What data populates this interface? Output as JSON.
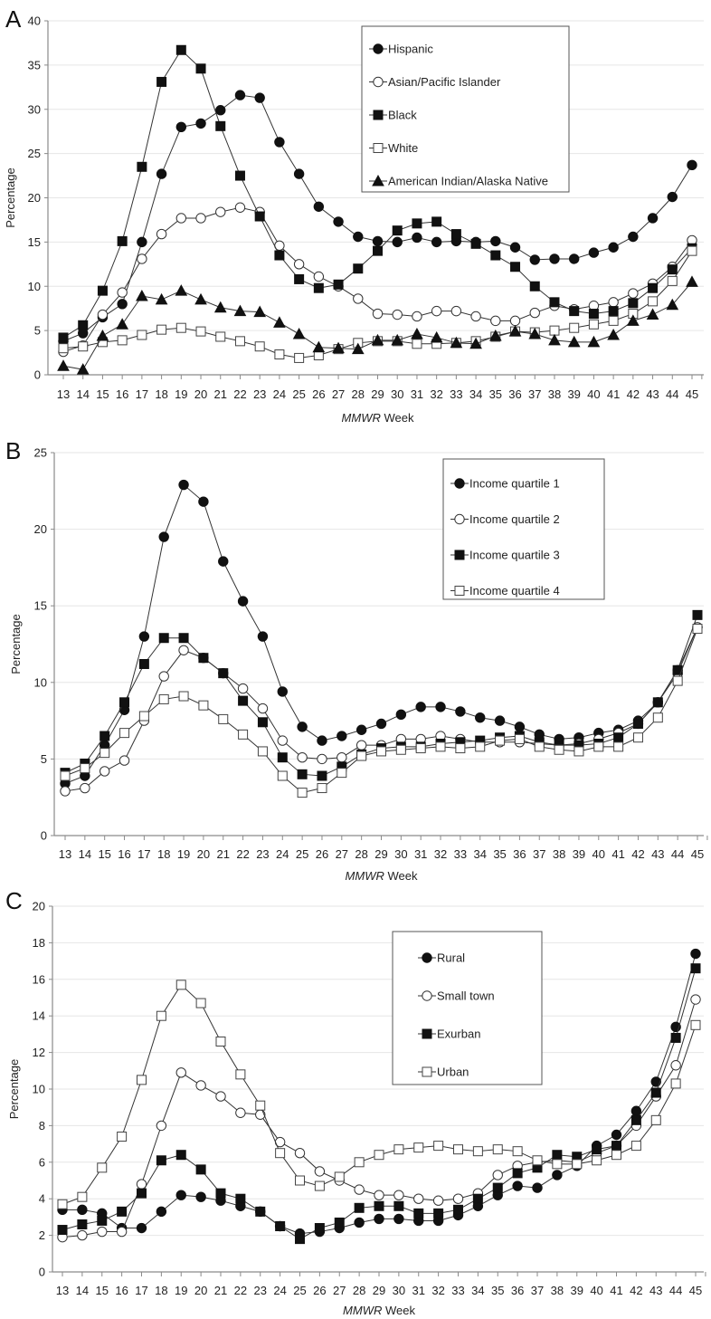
{
  "chart_data": [
    {
      "panel": "A",
      "type": "line",
      "xlabel_italic": "MMWR",
      "xlabel_rest": " Week",
      "ylabel": "Percentage",
      "x": [
        13,
        14,
        15,
        16,
        17,
        18,
        19,
        20,
        21,
        22,
        23,
        24,
        25,
        26,
        27,
        28,
        29,
        30,
        31,
        32,
        33,
        34,
        35,
        36,
        37,
        38,
        39,
        40,
        41,
        42,
        43,
        44,
        45
      ],
      "ylim": [
        0,
        40
      ],
      "yticks": [
        0,
        5,
        10,
        15,
        20,
        25,
        30,
        35,
        40
      ],
      "grid": true,
      "legend_position": "top-center",
      "series": [
        {
          "name": "Hispanic",
          "marker": "filled-circle",
          "values": [
            3.8,
            4.7,
            6.5,
            8.0,
            15.0,
            22.7,
            28.0,
            28.4,
            29.9,
            31.6,
            31.3,
            26.3,
            22.7,
            19.0,
            17.3,
            15.6,
            15.1,
            15.0,
            15.5,
            15.0,
            15.1,
            15.0,
            15.1,
            14.4,
            13.0,
            13.1,
            13.1,
            13.8,
            14.4,
            15.6,
            17.7,
            20.1,
            23.7
          ]
        },
        {
          "name": "Asian/Pacific Islander",
          "marker": "open-circle",
          "values": [
            2.6,
            3.3,
            6.8,
            9.3,
            13.1,
            15.9,
            17.7,
            17.7,
            18.4,
            18.9,
            18.4,
            14.6,
            12.5,
            11.1,
            10.0,
            8.6,
            6.9,
            6.8,
            6.6,
            7.2,
            7.2,
            6.6,
            6.1,
            6.1,
            7.0,
            7.8,
            7.4,
            7.8,
            8.2,
            9.2,
            10.3,
            12.2,
            15.2
          ]
        },
        {
          "name": "Black",
          "marker": "filled-square",
          "values": [
            4.2,
            5.6,
            9.5,
            15.1,
            23.5,
            33.1,
            36.7,
            34.6,
            28.1,
            22.5,
            17.9,
            13.5,
            10.8,
            9.8,
            10.2,
            12.0,
            14.0,
            16.3,
            17.1,
            17.3,
            15.9,
            14.8,
            13.5,
            12.2,
            10.0,
            8.2,
            7.2,
            6.9,
            7.2,
            8.1,
            9.8,
            11.9,
            14.3
          ]
        },
        {
          "name": "White",
          "marker": "open-square",
          "values": [
            3.0,
            3.2,
            3.7,
            3.9,
            4.5,
            5.1,
            5.3,
            4.9,
            4.3,
            3.8,
            3.2,
            2.3,
            1.9,
            2.2,
            2.9,
            3.6,
            3.8,
            3.8,
            3.5,
            3.5,
            3.6,
            3.8,
            4.3,
            4.9,
            4.8,
            5.0,
            5.3,
            5.7,
            6.1,
            6.9,
            8.3,
            10.6,
            14.0
          ]
        },
        {
          "name": "American Indian/Alaska Native",
          "marker": "filled-triangle",
          "values": [
            1.0,
            0.6,
            4.4,
            5.7,
            8.9,
            8.5,
            9.5,
            8.5,
            7.6,
            7.2,
            7.1,
            5.9,
            4.6,
            3.1,
            3.0,
            2.9,
            3.9,
            3.9,
            4.6,
            4.2,
            3.6,
            3.5,
            4.4,
            4.9,
            4.6,
            3.9,
            3.7,
            3.7,
            4.5,
            6.1,
            6.8,
            7.9,
            10.5
          ]
        }
      ]
    },
    {
      "panel": "B",
      "type": "line",
      "xlabel_italic": "MMWR",
      "xlabel_rest": " Week",
      "ylabel": "Percentage",
      "x": [
        13,
        14,
        15,
        16,
        17,
        18,
        19,
        20,
        21,
        22,
        23,
        24,
        25,
        26,
        27,
        28,
        29,
        30,
        31,
        32,
        33,
        34,
        35,
        36,
        37,
        38,
        39,
        40,
        41,
        42,
        43,
        44,
        45
      ],
      "ylim": [
        0,
        25
      ],
      "yticks": [
        0,
        5,
        10,
        15,
        20,
        25
      ],
      "grid": true,
      "legend_position": "top-right",
      "series": [
        {
          "name": "Income quartile 1",
          "marker": "filled-circle",
          "values": [
            3.4,
            3.9,
            5.9,
            8.2,
            13.0,
            19.5,
            22.9,
            21.8,
            17.9,
            15.3,
            13.0,
            9.4,
            7.1,
            6.2,
            6.5,
            6.9,
            7.3,
            7.9,
            8.4,
            8.4,
            8.1,
            7.7,
            7.5,
            7.1,
            6.6,
            6.3,
            6.4,
            6.7,
            6.9,
            7.5,
            8.7,
            10.8,
            13.6
          ]
        },
        {
          "name": "Income quartile 2",
          "marker": "open-circle",
          "values": [
            2.9,
            3.1,
            4.2,
            4.9,
            7.5,
            10.4,
            12.1,
            11.6,
            10.6,
            9.6,
            8.3,
            6.2,
            5.1,
            5.0,
            5.1,
            5.9,
            5.9,
            6.3,
            6.3,
            6.5,
            6.3,
            6.1,
            6.1,
            6.1,
            6.0,
            5.9,
            6.0,
            6.3,
            6.7,
            7.3,
            8.7,
            10.6,
            13.6
          ]
        },
        {
          "name": "Income quartile 3",
          "marker": "filled-square",
          "values": [
            4.1,
            4.7,
            6.5,
            8.7,
            11.2,
            12.9,
            12.9,
            11.6,
            10.6,
            8.8,
            7.4,
            5.1,
            4.0,
            3.9,
            4.5,
            5.3,
            5.7,
            5.8,
            5.8,
            6.0,
            6.1,
            6.2,
            6.4,
            6.5,
            6.1,
            5.9,
            5.9,
            6.0,
            6.4,
            7.3,
            8.7,
            10.8,
            14.4
          ]
        },
        {
          "name": "Income quartile 4",
          "marker": "open-square",
          "values": [
            3.9,
            4.4,
            5.4,
            6.7,
            7.8,
            8.9,
            9.1,
            8.5,
            7.6,
            6.6,
            5.5,
            3.9,
            2.8,
            3.1,
            4.1,
            5.2,
            5.5,
            5.6,
            5.7,
            5.8,
            5.7,
            5.8,
            6.2,
            6.3,
            5.8,
            5.6,
            5.5,
            5.8,
            5.8,
            6.4,
            7.7,
            10.1,
            13.5
          ]
        }
      ]
    },
    {
      "panel": "C",
      "type": "line",
      "xlabel_italic": "MMWR",
      "xlabel_rest": " Week",
      "ylabel": "Percentage",
      "x": [
        13,
        14,
        15,
        16,
        17,
        18,
        19,
        20,
        21,
        22,
        23,
        24,
        25,
        26,
        27,
        28,
        29,
        30,
        31,
        32,
        33,
        34,
        35,
        36,
        37,
        38,
        39,
        40,
        41,
        42,
        43,
        44,
        45
      ],
      "ylim": [
        0,
        20
      ],
      "yticks": [
        0,
        2,
        4,
        6,
        8,
        10,
        12,
        14,
        16,
        18,
        20
      ],
      "grid": true,
      "legend_position": "top-center",
      "series": [
        {
          "name": "Rural",
          "marker": "filled-circle",
          "values": [
            3.4,
            3.4,
            3.2,
            2.4,
            2.4,
            3.3,
            4.2,
            4.1,
            3.9,
            3.6,
            3.3,
            2.5,
            2.1,
            2.2,
            2.4,
            2.7,
            2.9,
            2.9,
            2.8,
            2.8,
            3.1,
            3.6,
            4.2,
            4.7,
            4.6,
            5.3,
            5.8,
            6.9,
            7.5,
            8.8,
            10.4,
            13.4,
            17.4
          ]
        },
        {
          "name": "Small town",
          "marker": "open-circle",
          "values": [
            1.9,
            2.0,
            2.2,
            2.2,
            4.8,
            8.0,
            10.9,
            10.2,
            9.6,
            8.7,
            8.6,
            7.1,
            6.5,
            5.5,
            5.0,
            4.5,
            4.2,
            4.2,
            4.0,
            3.9,
            4.0,
            4.3,
            5.3,
            5.8,
            6.0,
            6.1,
            6.0,
            6.5,
            6.9,
            8.0,
            9.6,
            11.3,
            14.9
          ]
        },
        {
          "name": "Exurban",
          "marker": "filled-square",
          "values": [
            2.3,
            2.6,
            2.8,
            3.3,
            4.3,
            6.1,
            6.4,
            5.6,
            4.3,
            4.0,
            3.3,
            2.5,
            1.8,
            2.4,
            2.7,
            3.5,
            3.6,
            3.6,
            3.2,
            3.2,
            3.4,
            4.0,
            4.6,
            5.4,
            5.7,
            6.4,
            6.3,
            6.7,
            6.9,
            8.3,
            9.8,
            12.8,
            16.6
          ]
        },
        {
          "name": "Urban",
          "marker": "open-square",
          "values": [
            3.7,
            4.1,
            5.7,
            7.4,
            10.5,
            14.0,
            15.7,
            14.7,
            12.6,
            10.8,
            9.1,
            6.5,
            5.0,
            4.7,
            5.2,
            6.0,
            6.4,
            6.7,
            6.8,
            6.9,
            6.7,
            6.6,
            6.7,
            6.6,
            6.1,
            5.9,
            5.9,
            6.1,
            6.4,
            6.9,
            8.3,
            10.3,
            13.5
          ]
        }
      ]
    }
  ]
}
